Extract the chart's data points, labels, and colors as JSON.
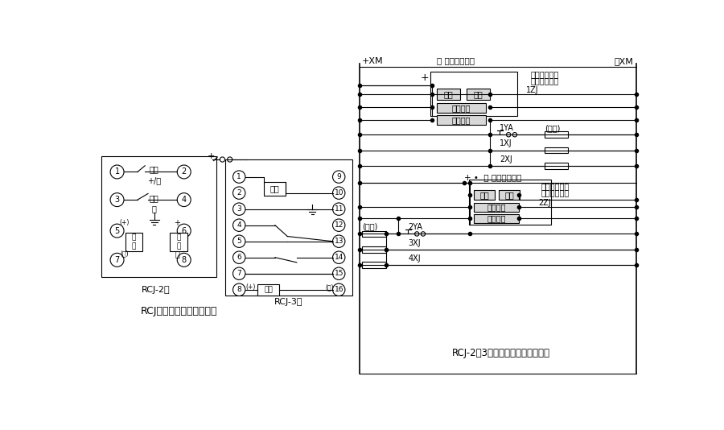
{
  "title_left": "RCJ系列冲击继电器接线图",
  "title_right": "RCJ-2、3型冲击继电器应用参考图",
  "label_rcj2": "RCJ-2型",
  "label_rcj3": "RCJ-3型",
  "bg_color": "#ffffff",
  "line_color": "#000000",
  "box_fill": "#e8e8e8",
  "box_fill2": "#d0d0d0"
}
